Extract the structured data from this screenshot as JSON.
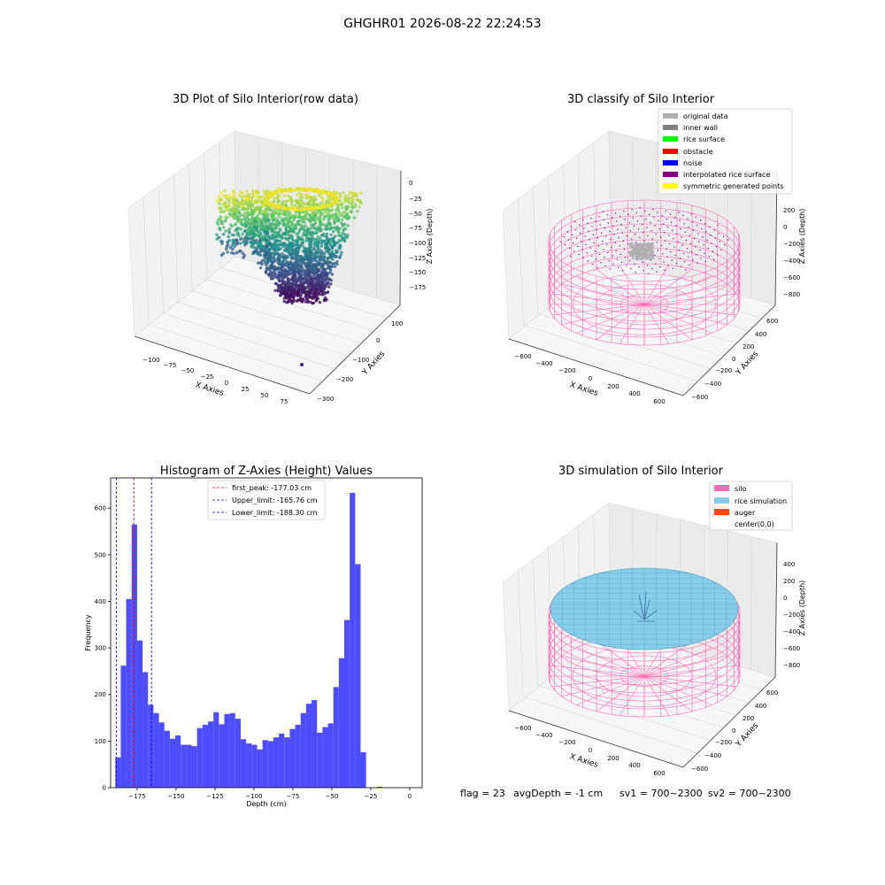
{
  "suptitle": "GHGHR01 2026-08-22 22:24:53",
  "footer": {
    "flag": "flag = 23",
    "avg_depth": "avgDepth = -1 cm",
    "sv1": "sv1 = 700~2300",
    "sv2": "sv2 = 700~2300"
  },
  "colors": {
    "histogram_bar": "#4d4dff",
    "peak_line": "#ff0000",
    "limit_line": "#0000ff",
    "silo": "#ff69b4",
    "rice_simulation": "#87ceeb",
    "auger": "#ff4500",
    "original_data": "#b0b0b0",
    "inner_wall": "#808080",
    "rice_surface": "#00ff00",
    "obstacle": "#ff0000",
    "noise": "#0000ff",
    "interpolated_rice_surface": "#800080",
    "symmetric_generated_points": "#ffff00"
  },
  "chart_data": [
    {
      "type": "scatter",
      "panel": "3d",
      "title": "3D Plot of Silo Interior(row data)",
      "xlabel": "X Axies",
      "ylabel": "Y Axies",
      "zlabel": "Z Axies (Depth)",
      "xticks": [
        "−100",
        "−75",
        "−50",
        "−25",
        "0",
        "25",
        "50",
        "75"
      ],
      "yticks": [
        "100",
        "0",
        "−100",
        "−200",
        "−300"
      ],
      "zticks": [
        "0",
        "−25",
        "−50",
        "−75",
        "−100",
        "−125",
        "−150",
        "−175"
      ],
      "zlim": [
        -190,
        5
      ],
      "colormap": "viridis"
    },
    {
      "type": "scatter",
      "panel": "3d",
      "title": "3D classify of Silo Interior",
      "xlabel": "X Axies",
      "ylabel": "Y Axies",
      "zlabel": "Z Axies (Depth)",
      "xticks": [
        "−600",
        "−400",
        "−200",
        "0",
        "200",
        "400",
        "600"
      ],
      "yticks": [
        "600",
        "400",
        "200",
        "0",
        "−200",
        "−400",
        "−600"
      ],
      "zticks": [
        "200",
        "0",
        "−200",
        "−400",
        "−600",
        "−800"
      ],
      "legend": [
        "original data",
        "inner wall",
        "rice surface",
        "obstacle",
        "noise",
        "interpolated rice surface",
        "symmetric generated points"
      ],
      "legend_position": "upper-right"
    },
    {
      "type": "bar",
      "title": "Histogram of Z-Axies (Height) Values",
      "xlabel": "Depth (cm)",
      "ylabel": "Frequency",
      "xlim": [
        -192,
        8
      ],
      "ylim": [
        0,
        665
      ],
      "bin_width": 3.5,
      "bin_start": -189,
      "values": [
        65,
        262,
        405,
        565,
        316,
        248,
        178,
        160,
        140,
        122,
        105,
        112,
        92,
        92,
        89,
        128,
        135,
        142,
        162,
        136,
        158,
        160,
        148,
        104,
        95,
        92,
        82,
        102,
        100,
        108,
        116,
        108,
        126,
        135,
        160,
        180,
        188,
        118,
        130,
        138,
        216,
        278,
        360,
        633,
        480,
        76,
        0,
        0,
        2,
        0
      ],
      "xticks": [
        -175,
        -150,
        -125,
        -100,
        -75,
        -50,
        -25,
        0
      ],
      "yticks": [
        0,
        100,
        200,
        300,
        400,
        500,
        600
      ],
      "vlines": [
        {
          "label": "first_peak: -177.03 cm",
          "x": -177.03,
          "style": "peak"
        },
        {
          "label": "Upper_limit: -165.76 cm",
          "x": -165.76,
          "style": "limit"
        },
        {
          "label": "Lower_limit: -188.30 cm",
          "x": -188.3,
          "style": "limit"
        }
      ]
    },
    {
      "type": "scatter",
      "panel": "3d",
      "title": "3D simulation of Silo Interior",
      "xlabel": "X Axies",
      "ylabel": "Y Axies",
      "zlabel": "Z Axies (Depth)",
      "xticks": [
        "−600",
        "−400",
        "−200",
        "0",
        "200",
        "400",
        "600"
      ],
      "yticks": [
        "600",
        "400",
        "200",
        "0",
        "−200",
        "−400",
        "−600"
      ],
      "zticks": [
        "400",
        "200",
        "0",
        "−200",
        "−400",
        "−600",
        "−800"
      ],
      "legend": [
        "silo",
        "rice simulation",
        "auger",
        "center(0,0)"
      ],
      "legend_position": "upper-right"
    }
  ]
}
